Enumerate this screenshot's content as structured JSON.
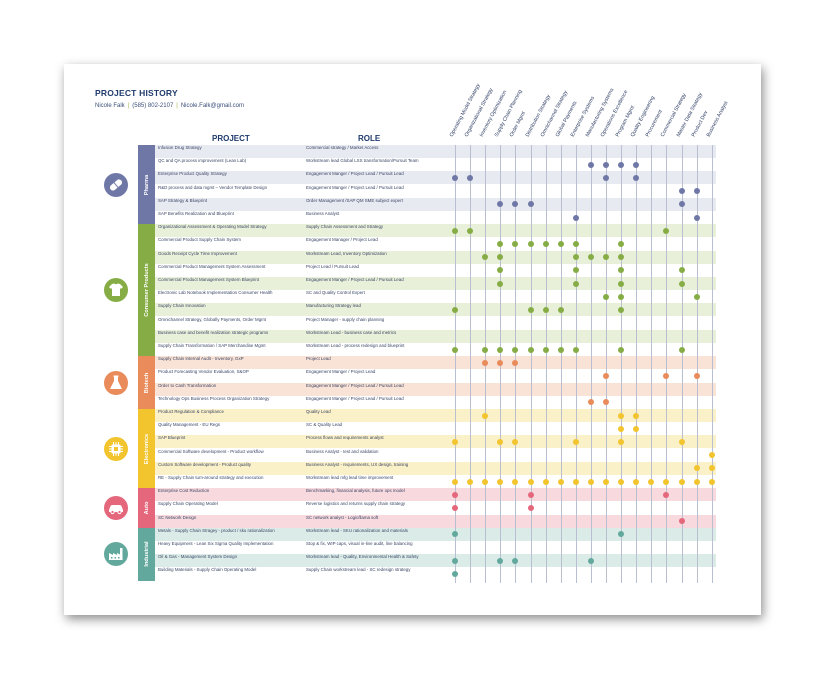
{
  "header": {
    "title": "PROJECT HISTORY",
    "name": "Nicole Falk",
    "phone": "(585) 802-2107",
    "email": "Nicole.Falk@gmail.com"
  },
  "columns_heading": {
    "project": "PROJECT",
    "role": "ROLE"
  },
  "capabilities": [
    "Operating Model Strategy",
    "Organizational Strategy",
    "Inventory Optimization",
    "Supply Chain Planning",
    "Order Mgmt",
    "Distribution Strategy",
    "Omnichannel Strategy",
    "Global Payments",
    "Enterprise Systems",
    "Manufacturing Systems",
    "Operations Excellence",
    "Program Mgmt",
    "Quality Engineering",
    "Procurement",
    "Commercial Strategy",
    "Master Data Strategy",
    "Product Dev",
    "Business Analyst"
  ],
  "industries": [
    {
      "name": "Pharma",
      "icon": "pill-icon",
      "color": "#6f77a6",
      "bg": "#e8eaf1",
      "projects": [
        {
          "project": "Infusion Drug Strategy",
          "role": "Commercial strategy / Market Access",
          "dots": []
        },
        {
          "project": "QC and QA process improvement (Lean Lab)",
          "role": "Workstream lead Global LSS transformation/Pursuit Team",
          "dots": [
            9,
            10,
            11,
            12
          ]
        },
        {
          "project": "Enterprise Product Quality Strategy",
          "role": "Engagement Manger / Project Lead / Pursuit Lead",
          "dots": [
            0,
            1,
            10,
            12
          ]
        },
        {
          "project": "R&D process and data mgmt – Vendor Template Design",
          "role": "Engagement Manger / Project Lead / Pursuit Lead",
          "dots": [
            15,
            16
          ]
        },
        {
          "project": "SAP Strategy & Blueprint",
          "role": "Order Management /SAP QM SME subject expert",
          "dots": [
            3,
            4,
            5,
            15
          ]
        },
        {
          "project": "SAP Benefits Realization and Blueprint",
          "role": "Business Analyst",
          "dots": [
            8,
            16
          ]
        }
      ]
    },
    {
      "name": "Consumer Products",
      "icon": "shirt-icon",
      "color": "#86ad45",
      "bg": "#e9f0da",
      "projects": [
        {
          "project": "Organizational Assessment & Operating Model Strategy",
          "role": "Supply Chain Assessment and Strategy",
          "dots": [
            0,
            1,
            14
          ]
        },
        {
          "project": "Commercial Product Supply Chain System",
          "role": "Engagement Manager / Project Lead",
          "dots": [
            3,
            4,
            5,
            6,
            7,
            8,
            11
          ]
        },
        {
          "project": "Goods Receipt Cycle Time Improvement",
          "role": "Workstream Lead, Inventory Optimization",
          "dots": [
            2,
            3,
            8,
            9,
            10,
            11
          ]
        },
        {
          "project": "Commercial Product Management System Assessment",
          "role": "Project Lead / Pursuit Lead",
          "dots": [
            3,
            8,
            11,
            15
          ]
        },
        {
          "project": "Commercial Product Management System Blueprint",
          "role": "Engagement Manger / Project Lead / Pursuit Lead",
          "dots": [
            3,
            8,
            11,
            15
          ]
        },
        {
          "project": "Electronic Lab Notebook Implementation Consumer Health",
          "role": "SC and Quality Control Expert",
          "dots": [
            10,
            11,
            16
          ]
        },
        {
          "project": "Supply Chain Innovation",
          "role": "Manufacturing Strategy lead",
          "dots": [
            0,
            5,
            6,
            7,
            11
          ]
        },
        {
          "project": "Omnichannel Strategy, Globally Payments, Order Mgmt",
          "role": "Project Manager - supply chain planning",
          "dots": []
        },
        {
          "project": "Business case and benefit realization strategic programs",
          "role": "Workstream Lead - business case and metrics",
          "dots": []
        },
        {
          "project": "Supply Chain Transformation / SAP Merchandise Mgmt",
          "role": "Workstream Lead - process redesign and blueprint",
          "dots": [
            0,
            2,
            3,
            4,
            5,
            6,
            7,
            8,
            11,
            15
          ]
        }
      ]
    },
    {
      "name": "Biotech",
      "icon": "flask-icon",
      "color": "#e98b5a",
      "bg": "#f9e2d6",
      "projects": [
        {
          "project": "Supply Chain Internal Audit - Inventory, GxP",
          "role": "Project Lead",
          "dots": [
            2,
            3,
            4
          ]
        },
        {
          "project": "Product Forecasting Vendor Evaluation, S&OP",
          "role": "Engagement Manger / Project Lead",
          "dots": [
            10,
            14,
            16
          ]
        },
        {
          "project": "Order to Cash Transformation",
          "role": "Engagement Manger / Project Lead / Pursuit Lead",
          "dots": []
        },
        {
          "project": "Technology Ops Business Process Organization Strategy",
          "role": "Engagement Manger / Project Lead / Pursuit Lead",
          "dots": [
            9,
            10
          ]
        }
      ]
    },
    {
      "name": "Electronics",
      "icon": "chip-icon",
      "color": "#f2c42e",
      "bg": "#fbf1c8",
      "projects": [
        {
          "project": "Product Regulation & Compliance",
          "role": "Quality Lead",
          "dots": [
            2,
            11,
            12
          ]
        },
        {
          "project": "Quality Management - EU Regs",
          "role": "SC & Quality Lead",
          "dots": [
            11,
            12
          ]
        },
        {
          "project": "SAP Blueprint",
          "role": "Process flows and requirements analyst",
          "dots": [
            0,
            3,
            4,
            8,
            11,
            15
          ]
        },
        {
          "project": "Commercial Software development - Product workflow",
          "role": "Business Analyst - test and validation",
          "dots": [
            17
          ]
        },
        {
          "project": "Custom Software development - Product quality",
          "role": "Business Analyst - requirements, UX design, training",
          "dots": [
            16,
            17
          ]
        },
        {
          "project": "RE - Supply Chain turn-around strategy and execution",
          "role": "Workstream lead mfg lead time improvement",
          "dots": [
            0,
            1,
            2,
            3,
            4,
            5,
            6,
            7,
            8,
            9,
            10,
            11,
            12,
            13,
            14,
            15,
            16,
            17
          ]
        }
      ]
    },
    {
      "name": "Auto",
      "icon": "car-icon",
      "color": "#e4677c",
      "bg": "#f8dade",
      "projects": [
        {
          "project": "Enterprise Cost Reduction",
          "role": "Benchmarking, financial analysis, future ops model",
          "dots": [
            0,
            5,
            14
          ]
        },
        {
          "project": "Supply Chain Operating Model",
          "role": "Reverse logistics and returns supply chain strategy",
          "dots": [
            0,
            5
          ]
        },
        {
          "project": "SC Network Design",
          "role": "SC network analyst - Logic/llama soft",
          "dots": [
            15
          ]
        }
      ]
    },
    {
      "name": "Industrial",
      "icon": "factory-icon",
      "color": "#63a89c",
      "bg": "#dbece8",
      "projects": [
        {
          "project": "Metals - Supply Chain Stragey - product / sku rationalization",
          "role": "Workstream lead - SKU rationalization and materials",
          "dots": [
            0,
            11
          ]
        },
        {
          "project": "Heavy Equipment - Lean Six Sigma Quality Implementation",
          "role": "Stop & fix, WIP caps, visual in-line audit, line balancing",
          "dots": []
        },
        {
          "project": "Oil & Gas - Management System Design",
          "role": "Workstream lead - Quality, Environmental Health & Safety",
          "dots": [
            0,
            3,
            4,
            9
          ]
        },
        {
          "project": "Building Materials - Supply Chain Operating Model",
          "role": "Supply Chain workstream lead - SC redesign strategy",
          "dots": [
            0
          ]
        }
      ]
    }
  ]
}
